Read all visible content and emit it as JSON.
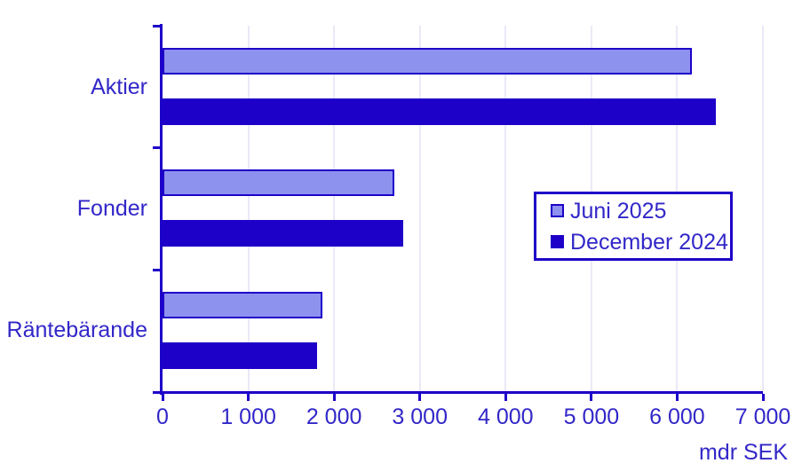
{
  "chart_data": {
    "type": "bar",
    "orientation": "horizontal",
    "title": "",
    "categories": [
      "Aktier",
      "Fonder",
      "Räntebärande"
    ],
    "series": [
      {
        "name": "Juni 2025",
        "values": [
          6170,
          2700,
          1860
        ],
        "color": "#8e92ef",
        "border_color": "#1e01c8"
      },
      {
        "name": "December 2024",
        "values": [
          6450,
          2810,
          1800
        ],
        "color": "#1e01c8",
        "border_color": "#1e01c8"
      }
    ],
    "xlabel": "mdr SEK",
    "ylabel": "",
    "xlim": [
      0,
      7000
    ],
    "x_tick_step": 1000,
    "x_tick_labels": [
      "0",
      "1 000",
      "2 000",
      "3 000",
      "4 000",
      "5 000",
      "6 000",
      "7 000"
    ],
    "grid": true,
    "legend_position": "inside-right",
    "legend": [
      "Juni 2025",
      "December 2024"
    ]
  },
  "colors": {
    "series_light": "#8e92ef",
    "series_dark": "#1e01c8",
    "axis": "#1e01c8",
    "text": "#3227c8",
    "gridline": "#e9e9f8",
    "background": "#ffffff"
  }
}
